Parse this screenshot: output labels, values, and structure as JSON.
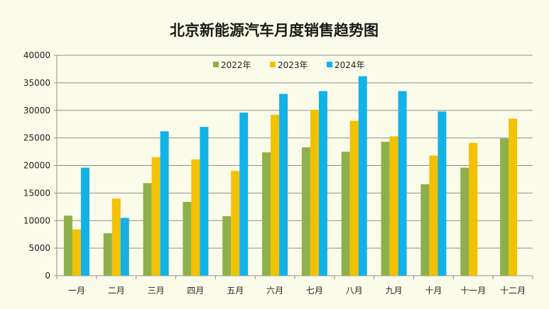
{
  "chart_data": {
    "type": "bar",
    "title": "北京新能源汽车月度销售趋势图",
    "xlabel": "",
    "ylabel": "",
    "ylim": [
      0,
      40000
    ],
    "yticks": [
      0,
      5000,
      10000,
      15000,
      20000,
      25000,
      30000,
      35000,
      40000
    ],
    "grid": true,
    "legend_position": "top-center",
    "categories": [
      "一月",
      "二月",
      "三月",
      "四月",
      "五月",
      "六月",
      "七月",
      "八月",
      "九月",
      "十月",
      "十一月",
      "十二月"
    ],
    "series": [
      {
        "name": "2022年",
        "color": "#8db04a",
        "values": [
          10900,
          7700,
          16800,
          13400,
          10800,
          22400,
          23300,
          22500,
          24300,
          16600,
          19600,
          24900
        ]
      },
      {
        "name": "2023年",
        "color": "#f2c100",
        "values": [
          8400,
          14000,
          21500,
          21100,
          19000,
          29200,
          30100,
          28100,
          25300,
          21800,
          24100,
          28500
        ]
      },
      {
        "name": "2024年",
        "color": "#12b2e6",
        "values": [
          19600,
          10500,
          26200,
          27000,
          29600,
          33000,
          33500,
          36200,
          33500,
          29800,
          null,
          null
        ]
      }
    ]
  }
}
